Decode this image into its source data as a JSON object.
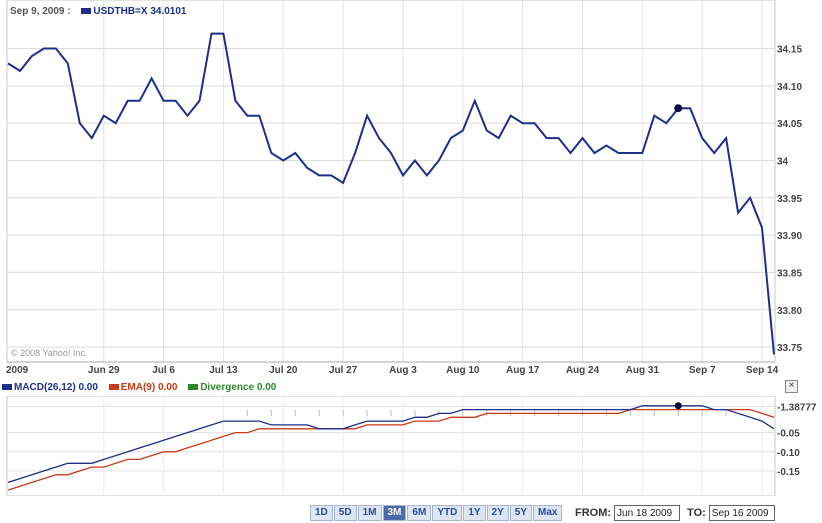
{
  "header": {
    "date": "Sep 9, 2009 :",
    "symbol": "USDTHB=X",
    "value": "34.0101"
  },
  "copyright": "© 2008 Yahoo! Inc.",
  "colors": {
    "price": "#1e2f8a",
    "macd": "#1e2f8a",
    "ema": "#c8391a",
    "divergence": "#2a8a2a",
    "grid": "#d8d8d8"
  },
  "chart_data": [
    {
      "type": "line",
      "title": "",
      "y_ticks": [
        "34.15",
        "34.10",
        "34.05",
        "34",
        "33.95",
        "33.90",
        "33.85",
        "33.80",
        "33.75"
      ],
      "x_ticks": [
        "2009",
        "Jun 29",
        "Jul 6",
        "Jul 13",
        "Jul 20",
        "Jul 27",
        "Aug 3",
        "Aug 10",
        "Aug 17",
        "Aug 24",
        "Aug 31",
        "Sep 7",
        "Sep 14"
      ],
      "ylim": [
        33.73,
        34.215
      ],
      "series": [
        {
          "name": "USDTHB=X",
          "values": [
            34.13,
            34.12,
            34.14,
            34.15,
            34.15,
            34.13,
            34.05,
            34.03,
            34.06,
            34.05,
            34.08,
            34.08,
            34.11,
            34.08,
            34.08,
            34.06,
            34.08,
            34.17,
            34.17,
            34.08,
            34.06,
            34.06,
            34.01,
            34.0,
            34.01,
            33.99,
            33.98,
            33.98,
            33.97,
            34.01,
            34.06,
            34.03,
            34.01,
            33.98,
            34.0,
            33.98,
            34.0,
            34.03,
            34.04,
            34.08,
            34.04,
            34.03,
            34.06,
            34.05,
            34.05,
            34.03,
            34.03,
            34.01,
            34.03,
            34.01,
            34.02,
            34.01,
            34.01,
            34.01,
            34.06,
            34.05,
            34.07,
            34.07,
            34.03,
            34.01,
            34.03,
            33.93,
            33.95,
            33.91,
            33.74
          ]
        }
      ],
      "marker_index": 56,
      "grid": true
    },
    {
      "type": "line",
      "title": "",
      "y_ticks": [
        "-1.38777",
        "-0.05",
        "-0.10",
        "-0.15"
      ],
      "series": [
        {
          "name": "MACD(26,12)",
          "current": "0.00",
          "values": [
            -0.18,
            -0.17,
            -0.16,
            -0.15,
            -0.14,
            -0.13,
            -0.13,
            -0.13,
            -0.12,
            -0.11,
            -0.1,
            -0.09,
            -0.08,
            -0.07,
            -0.06,
            -0.05,
            -0.04,
            -0.03,
            -0.02,
            -0.02,
            -0.02,
            -0.02,
            -0.03,
            -0.03,
            -0.03,
            -0.03,
            -0.04,
            -0.04,
            -0.04,
            -0.03,
            -0.02,
            -0.02,
            -0.02,
            -0.02,
            -0.01,
            -0.01,
            0.0,
            0.0,
            0.01,
            0.01,
            0.01,
            0.01,
            0.01,
            0.01,
            0.01,
            0.01,
            0.01,
            0.01,
            0.01,
            0.01,
            0.01,
            0.01,
            0.01,
            0.02,
            0.02,
            0.02,
            0.02,
            0.02,
            0.02,
            0.01,
            0.01,
            0.0,
            -0.01,
            -0.02,
            -0.04
          ]
        },
        {
          "name": "EMA(9)",
          "current": "0.00",
          "values": [
            -0.2,
            -0.19,
            -0.18,
            -0.17,
            -0.16,
            -0.16,
            -0.15,
            -0.14,
            -0.14,
            -0.13,
            -0.12,
            -0.12,
            -0.11,
            -0.1,
            -0.1,
            -0.09,
            -0.08,
            -0.07,
            -0.06,
            -0.05,
            -0.05,
            -0.04,
            -0.04,
            -0.04,
            -0.04,
            -0.04,
            -0.04,
            -0.04,
            -0.04,
            -0.04,
            -0.03,
            -0.03,
            -0.03,
            -0.03,
            -0.02,
            -0.02,
            -0.02,
            -0.01,
            -0.01,
            -0.01,
            0.0,
            0.0,
            0.0,
            0.0,
            0.0,
            0.0,
            0.0,
            0.0,
            0.0,
            0.0,
            0.0,
            0.0,
            0.01,
            0.01,
            0.01,
            0.01,
            0.01,
            0.01,
            0.01,
            0.01,
            0.01,
            0.01,
            0.01,
            0.0,
            -0.01
          ]
        },
        {
          "name": "Divergence",
          "current": "0.00"
        }
      ]
    }
  ],
  "range_buttons": [
    "1D",
    "5D",
    "1M",
    "3M",
    "6M",
    "YTD",
    "1Y",
    "2Y",
    "5Y",
    "Max"
  ],
  "active_range": "3M",
  "from_label": "FROM:",
  "from_value": "Jun 18 2009",
  "to_label": "TO:",
  "to_value": "Sep 16 2009",
  "close_label": "×"
}
